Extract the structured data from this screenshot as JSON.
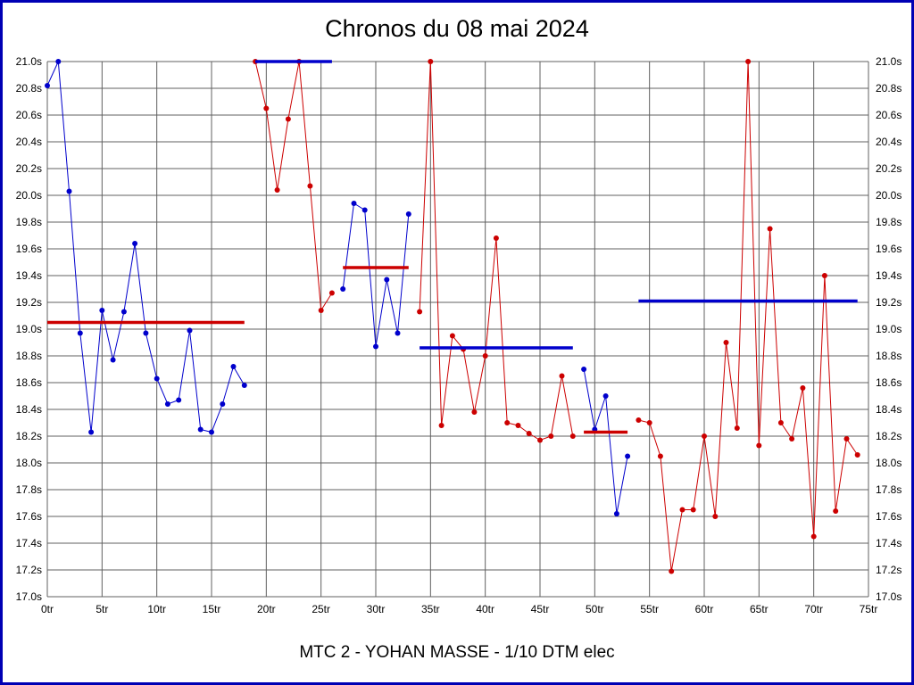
{
  "page": {
    "border_color": "#0000b4",
    "background_color": "#ffffff"
  },
  "chart_data": {
    "type": "line",
    "title": "Chronos du 08 mai 2024",
    "subtitle": "MTC 2 - YOHAN MASSE - 1/10 DTM elec",
    "x_unit": "tr",
    "y_unit": "s",
    "xlim": [
      0,
      75
    ],
    "ylim": [
      17.0,
      21.0
    ],
    "x_tick_step": 5,
    "y_tick_step": 0.2,
    "grid": true,
    "grid_color": "#606060",
    "legend": "none",
    "x_tick_labels": [
      "0tr",
      "5tr",
      "10tr",
      "15tr",
      "20tr",
      "25tr",
      "30tr",
      "35tr",
      "40tr",
      "45tr",
      "50tr",
      "55tr",
      "60tr",
      "65tr",
      "70tr",
      "75tr"
    ],
    "y_tick_labels": [
      "17.0s",
      "17.2s",
      "17.4s",
      "17.6s",
      "17.8s",
      "18.0s",
      "18.2s",
      "18.4s",
      "18.6s",
      "18.8s",
      "19.0s",
      "19.2s",
      "19.4s",
      "19.6s",
      "19.8s",
      "20.0s",
      "20.2s",
      "20.4s",
      "20.6s",
      "20.8s",
      "21.0s"
    ],
    "series": [
      {
        "name": "run-1-blue",
        "color": "#0000cc",
        "start_lap": 0,
        "values": [
          20.82,
          21.0,
          20.03,
          18.97,
          18.23,
          19.14,
          18.77,
          19.13,
          19.64,
          18.97,
          18.63,
          18.44,
          18.47,
          18.99,
          18.25,
          18.23,
          18.44,
          18.72,
          18.58
        ]
      },
      {
        "name": "run-2-red",
        "color": "#cc0000",
        "start_lap": 19,
        "values": [
          21.0,
          20.65,
          20.04,
          20.57,
          21.0,
          20.07,
          19.14,
          19.27
        ]
      },
      {
        "name": "run-3-blue",
        "color": "#0000cc",
        "start_lap": 27,
        "values": [
          19.3,
          19.94,
          19.89,
          18.87,
          19.37,
          18.97,
          19.86
        ]
      },
      {
        "name": "run-4-red",
        "color": "#cc0000",
        "start_lap": 34,
        "values": [
          19.13,
          21.0,
          18.28,
          18.95,
          18.85,
          18.38,
          18.8,
          19.68,
          18.3,
          18.28,
          18.22,
          18.17,
          18.2,
          18.65,
          18.2
        ]
      },
      {
        "name": "run-5-blue",
        "color": "#0000cc",
        "start_lap": 49,
        "values": [
          18.7,
          18.25,
          18.5,
          17.62,
          18.05
        ]
      },
      {
        "name": "run-6-red",
        "color": "#cc0000",
        "start_lap": 54,
        "values": [
          18.32,
          18.3,
          18.05,
          17.19,
          17.65,
          17.65,
          18.2,
          17.6,
          18.9,
          18.26,
          21.0,
          18.13,
          19.75,
          18.3,
          18.18,
          18.56,
          17.45,
          19.4,
          17.64,
          18.18,
          18.06
        ]
      }
    ],
    "average_lines": [
      {
        "name": "avg-run-1",
        "color": "#cc0000",
        "from_lap": 0,
        "to_lap": 18,
        "value": 19.05
      },
      {
        "name": "avg-run-2",
        "color": "#0000cc",
        "from_lap": 19,
        "to_lap": 26,
        "value": 21.0
      },
      {
        "name": "avg-run-3",
        "color": "#cc0000",
        "from_lap": 27,
        "to_lap": 33,
        "value": 19.46
      },
      {
        "name": "avg-run-4",
        "color": "#0000cc",
        "from_lap": 34,
        "to_lap": 48,
        "value": 18.86
      },
      {
        "name": "avg-run-5",
        "color": "#cc0000",
        "from_lap": 49,
        "to_lap": 53,
        "value": 18.23
      },
      {
        "name": "avg-run-6",
        "color": "#0000cc",
        "from_lap": 54,
        "to_lap": 74,
        "value": 19.21
      }
    ]
  }
}
